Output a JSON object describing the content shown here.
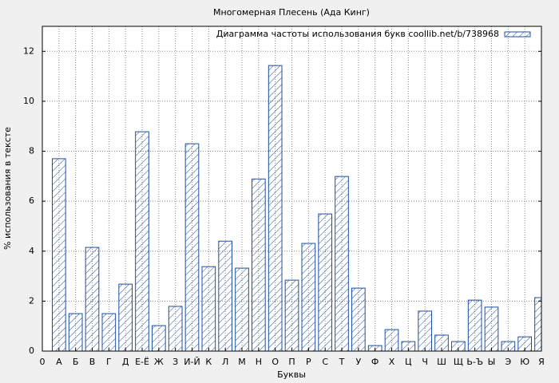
{
  "chart_data": {
    "type": "bar",
    "title": "Многомерная Плесень (Ада Кинг)",
    "xlabel": "Буквы",
    "ylabel": "% использования в тексте",
    "x": [
      1,
      2,
      3,
      4,
      5,
      6,
      7,
      8,
      9,
      10,
      11,
      12,
      13,
      14,
      15,
      16,
      17,
      18,
      19,
      20,
      21,
      22,
      23,
      24,
      25,
      26,
      27,
      28,
      29,
      30
    ],
    "series": [
      {
        "name": "Диаграмма частоты использования букв coollib.net/b/738968",
        "color": "#1f4e9c",
        "values": [
          7.7,
          1.5,
          4.15,
          1.5,
          2.68,
          8.78,
          1.02,
          1.79,
          8.3,
          3.38,
          4.4,
          3.32,
          6.89,
          11.43,
          2.84,
          4.31,
          5.49,
          6.99,
          2.52,
          0.22,
          0.86,
          0.38,
          1.6,
          0.64,
          0.38,
          2.04,
          1.76,
          0.38,
          0.57,
          2.14
        ]
      }
    ],
    "xlim": [
      0,
      30
    ],
    "xticks": [
      0,
      {
        "value": 1,
        "label": "А"
      },
      {
        "value": 2,
        "label": "Б"
      },
      {
        "value": 3,
        "label": "В"
      },
      {
        "value": 4,
        "label": "Г"
      },
      {
        "value": 5,
        "label": "Д"
      },
      {
        "value": 6,
        "label": "Е-Ё"
      },
      {
        "value": 7,
        "label": "Ж"
      },
      {
        "value": 8,
        "label": "З"
      },
      {
        "value": 9,
        "label": "И-Й"
      },
      {
        "value": 10,
        "label": "К"
      },
      {
        "value": 11,
        "label": "Л"
      },
      {
        "value": 12,
        "label": "М"
      },
      {
        "value": 13,
        "label": "Н"
      },
      {
        "value": 14,
        "label": "О"
      },
      {
        "value": 15,
        "label": "П"
      },
      {
        "value": 16,
        "label": "Р"
      },
      {
        "value": 17,
        "label": "С"
      },
      {
        "value": 18,
        "label": "Т"
      },
      {
        "value": 19,
        "label": "У"
      },
      {
        "value": 20,
        "label": "Ф"
      },
      {
        "value": 21,
        "label": "Х"
      },
      {
        "value": 22,
        "label": "Ц"
      },
      {
        "value": 23,
        "label": "Ч"
      },
      {
        "value": 24,
        "label": "Ш"
      },
      {
        "value": 25,
        "label": "Щ"
      },
      {
        "value": 26,
        "label": "Ь-Ъ"
      },
      {
        "value": 27,
        "label": "Ы"
      },
      {
        "value": 28,
        "label": "Э"
      },
      {
        "value": 29,
        "label": "Ю"
      },
      {
        "value": 30,
        "label": "Я"
      }
    ],
    "ylim": [
      0,
      13
    ],
    "yticks": [
      0,
      2,
      4,
      6,
      8,
      10,
      12
    ],
    "grid": true,
    "legend": "upper right"
  }
}
